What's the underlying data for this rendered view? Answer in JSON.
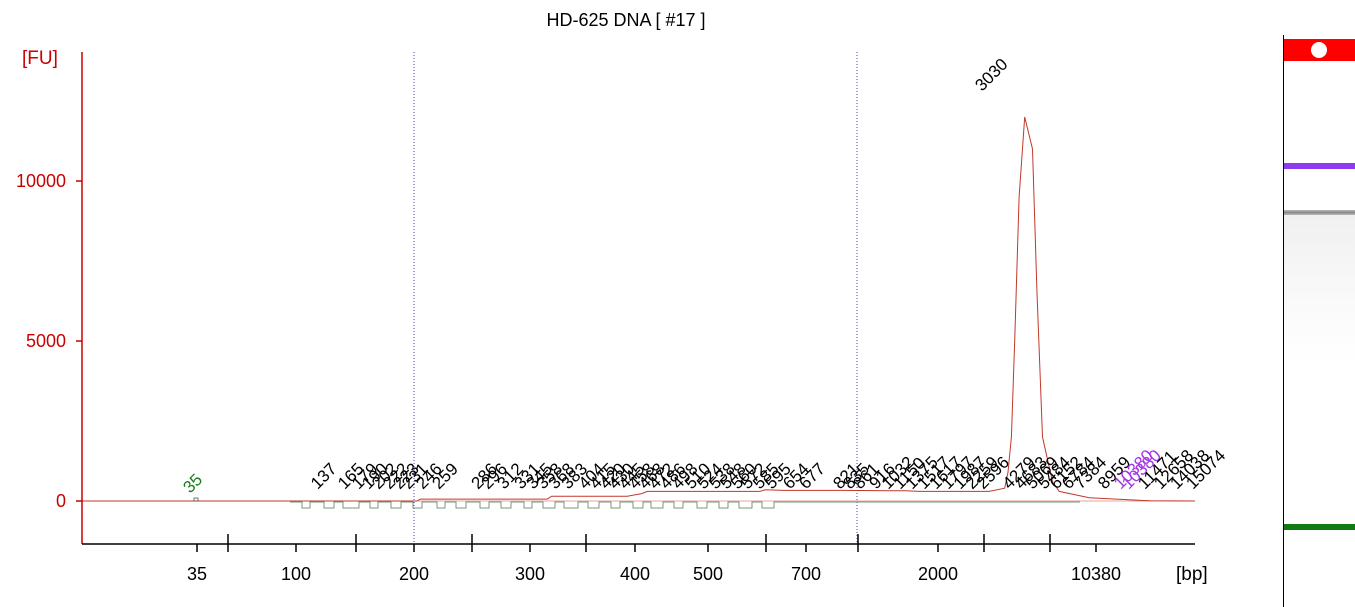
{
  "chart_data": {
    "type": "line",
    "title": "HD-625 DNA  [ #17 ]",
    "ylabel": "[FU]",
    "xlabel": "[bp]",
    "ylim": [
      -1300,
      14000
    ],
    "y_ticks": [
      "0",
      "5000",
      "10000"
    ],
    "x_ticks": [
      "35",
      "100",
      "200",
      "300",
      "400",
      "500",
      "700",
      "2000",
      "10380"
    ],
    "grid": false,
    "series": [
      {
        "color": "#c0392b",
        "x": [
          0,
          0.5,
          1,
          1.3,
          2,
          3.01,
          3.04,
          3.42,
          4.18,
          4.22,
          4.3,
          4.9,
          5.03,
          5.08,
          5.18,
          5.6,
          6.09,
          6.14,
          6.3,
          6.84,
          7.4,
          7.52,
          7.82,
          8.15,
          8.29,
          8.32,
          8.35,
          8.38,
          8.42,
          8.47,
          8.54,
          8.58,
          8.63,
          8.72,
          8.78,
          9.05,
          9.45,
          9.52,
          9.6,
          10
        ],
        "y": [
          0,
          0,
          0,
          0,
          0,
          0,
          60,
          60,
          60,
          150,
          150,
          150,
          230,
          300,
          300,
          300,
          300,
          350,
          330,
          330,
          320,
          300,
          300,
          300,
          400,
          900,
          2000,
          5000,
          9500,
          12000,
          11000,
          6500,
          2000,
          600,
          300,
          100,
          30,
          20,
          10,
          0
        ]
      }
    ],
    "peaks": [
      {
        "x": 0.95,
        "label": "35",
        "color": "#1a7f1a"
      },
      {
        "x": 2.35,
        "label": "137"
      },
      {
        "x": 2.62,
        "label": "165"
      },
      {
        "x": 2.76,
        "label": "179"
      },
      {
        "x": 2.86,
        "label": "190"
      },
      {
        "x": 2.96,
        "label": "202"
      },
      {
        "x": 3.07,
        "label": "222"
      },
      {
        "x": 3.17,
        "label": "223"
      },
      {
        "x": 3.26,
        "label": "231"
      },
      {
        "x": 3.4,
        "label": "246"
      },
      {
        "x": 3.56,
        "label": "259"
      },
      {
        "x": 3.95,
        "label": "286"
      },
      {
        "x": 4.05,
        "label": "296"
      },
      {
        "x": 4.21,
        "label": "312"
      },
      {
        "x": 4.38,
        "label": "331"
      },
      {
        "x": 4.5,
        "label": "345"
      },
      {
        "x": 4.6,
        "label": "358"
      },
      {
        "x": 4.72,
        "label": "368"
      },
      {
        "x": 4.85,
        "label": "383"
      },
      {
        "x": 5.02,
        "label": "404"
      },
      {
        "x": 5.13,
        "label": "415"
      },
      {
        "x": 5.23,
        "label": "420"
      },
      {
        "x": 5.32,
        "label": "430"
      },
      {
        "x": 5.42,
        "label": "445"
      },
      {
        "x": 5.52,
        "label": "458"
      },
      {
        "x": 5.62,
        "label": "468"
      },
      {
        "x": 5.72,
        "label": "472"
      },
      {
        "x": 5.83,
        "label": "486"
      },
      {
        "x": 5.95,
        "label": "498"
      },
      {
        "x": 6.08,
        "label": "510"
      },
      {
        "x": 6.2,
        "label": "524"
      },
      {
        "x": 6.32,
        "label": "538"
      },
      {
        "x": 6.43,
        "label": "548"
      },
      {
        "x": 6.54,
        "label": "560"
      },
      {
        "x": 6.64,
        "label": "572"
      },
      {
        "x": 6.76,
        "label": "585"
      },
      {
        "x": 6.88,
        "label": "595"
      },
      {
        "x": 7.06,
        "label": "654"
      },
      {
        "x": 7.22,
        "label": "677"
      },
      {
        "x": 7.56,
        "label": "821"
      },
      {
        "x": 7.66,
        "label": "835"
      },
      {
        "x": 7.76,
        "label": "861"
      },
      {
        "x": 7.92,
        "label": "916"
      },
      {
        "x": 8.04,
        "label": "1032"
      },
      {
        "x": 8.16,
        "label": "1150"
      },
      {
        "x": 8.28,
        "label": "1375"
      },
      {
        "x": 8.4,
        "label": "1517"
      },
      {
        "x": 8.52,
        "label": "1617"
      },
      {
        "x": 8.64,
        "label": "1797"
      },
      {
        "x": 8.76,
        "label": "1987"
      },
      {
        "x": 8.88,
        "label": "2259"
      },
      {
        "x": 8.99,
        "label": "2596"
      },
      {
        "x": 8.45,
        "label": "3030",
        "y": 12800
      },
      {
        "x": 9.25,
        "label": "4279"
      },
      {
        "x": 9.37,
        "label": "4683"
      },
      {
        "x": 9.48,
        "label": "5069"
      },
      {
        "x": 9.6,
        "label": "5484"
      },
      {
        "x": 9.72,
        "label": "6152"
      },
      {
        "x": 9.84,
        "label": "6784"
      },
      {
        "x": 9.96,
        "label": "7384"
      },
      {
        "x": 10.2,
        "label": "8959"
      },
      {
        "x": 10.36,
        "label": "10380",
        "color": "#a335e8"
      },
      {
        "x": 10.44,
        "label": "10380",
        "color": "#a335e8"
      },
      {
        "x": 10.6,
        "label": "11471"
      },
      {
        "x": 10.76,
        "label": "12658"
      },
      {
        "x": 10.92,
        "label": "14038"
      },
      {
        "x": 11.08,
        "label": "15074"
      }
    ],
    "dotted_lines_x": [
      "200",
      "2000"
    ]
  },
  "colors": {
    "axis_red": "#cc0000",
    "trace_red": "#c0392b",
    "gel_red": "#ff0000",
    "marker_purple": "#8e3cf0",
    "marker_green": "#117a11",
    "dotted_blue": "#4040c0"
  },
  "gel": {
    "lane_bands": [
      "top-marker",
      "upper-marker",
      "sample-band",
      "lower-marker"
    ]
  }
}
